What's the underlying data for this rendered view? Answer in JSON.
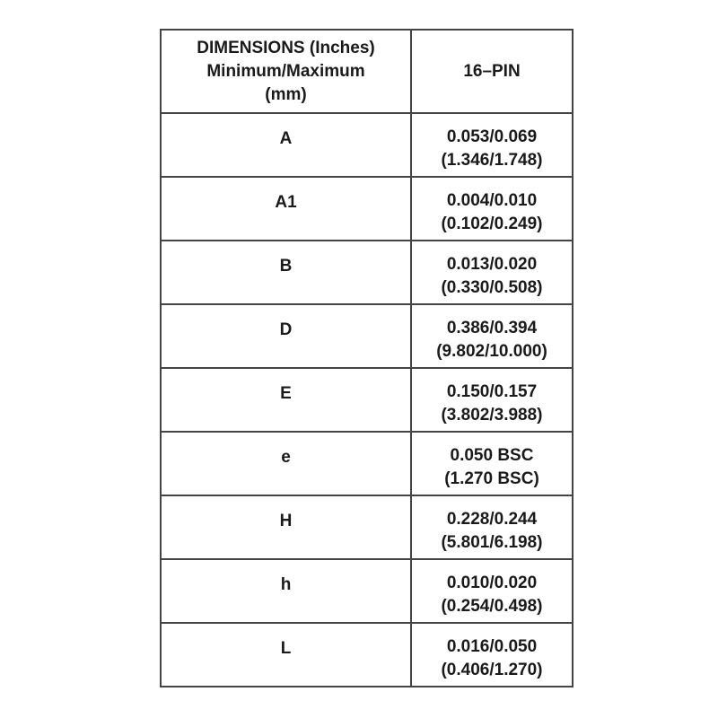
{
  "header": {
    "dimension_lines": [
      "DIMENSIONS (Inches)",
      "Minimum/Maximum",
      "(mm)"
    ],
    "package": "16–PIN"
  },
  "rows": [
    {
      "label": "A",
      "inches": "0.053/0.069",
      "mm": "(1.346/1.748)"
    },
    {
      "label": "A1",
      "inches": "0.004/0.010",
      "mm": "(0.102/0.249)"
    },
    {
      "label": "B",
      "inches": "0.013/0.020",
      "mm": "(0.330/0.508)"
    },
    {
      "label": "D",
      "inches": "0.386/0.394",
      "mm": "(9.802/10.000)"
    },
    {
      "label": "E",
      "inches": "0.150/0.157",
      "mm": "(3.802/3.988)"
    },
    {
      "label": "e",
      "inches": "0.050 BSC",
      "mm": "(1.270 BSC)"
    },
    {
      "label": "H",
      "inches": "0.228/0.244",
      "mm": "(5.801/6.198)"
    },
    {
      "label": "h",
      "inches": "0.010/0.020",
      "mm": "(0.254/0.498)"
    },
    {
      "label": "L",
      "inches": "0.016/0.050",
      "mm": "(0.406/1.270)"
    }
  ]
}
